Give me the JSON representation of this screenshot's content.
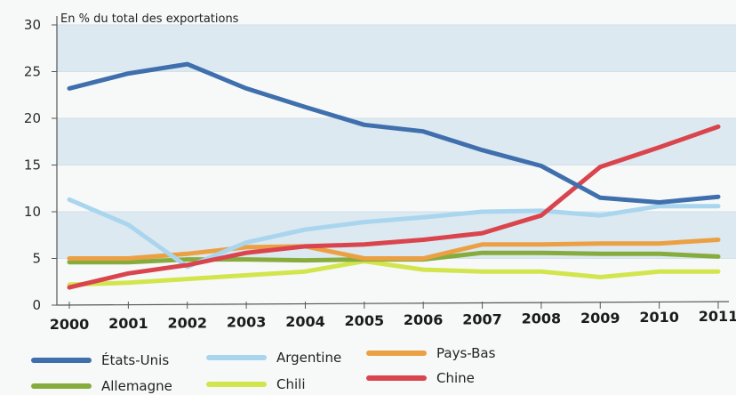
{
  "chart_data": {
    "type": "line",
    "title": "",
    "ylabel": "En % du total des exportations",
    "xlabel": "",
    "x": [
      "2000",
      "2001",
      "2002",
      "2003",
      "2004",
      "2005",
      "2006",
      "2007",
      "2008",
      "2009",
      "2010",
      "2011"
    ],
    "ylim": [
      0,
      30
    ],
    "yticks": [
      0,
      5,
      10,
      15,
      20,
      25,
      30
    ],
    "grid": "horizontal bands",
    "legend_position": "bottom",
    "series": [
      {
        "name": "États-Unis",
        "color": "#3f6fad",
        "values": [
          23.2,
          24.8,
          25.8,
          23.2,
          21.2,
          19.3,
          18.6,
          16.6,
          14.9,
          11.5,
          11.0,
          11.6
        ]
      },
      {
        "name": "Argentine",
        "color": "#a9d6ee",
        "values": [
          11.3,
          8.6,
          4.1,
          6.7,
          8.1,
          8.9,
          9.4,
          10.0,
          10.1,
          9.6,
          10.6,
          10.6
        ]
      },
      {
        "name": "Pays-Bas",
        "color": "#eba043",
        "values": [
          5.0,
          5.0,
          5.5,
          6.2,
          6.3,
          5.0,
          5.0,
          6.5,
          6.5,
          6.6,
          6.6,
          7.0
        ]
      },
      {
        "name": "Allemagne",
        "color": "#86ac3e",
        "values": [
          4.6,
          4.6,
          4.9,
          4.9,
          4.8,
          4.9,
          4.9,
          5.6,
          5.6,
          5.5,
          5.5,
          5.2
        ]
      },
      {
        "name": "Chili",
        "color": "#d3e54d",
        "values": [
          2.2,
          2.4,
          2.8,
          3.2,
          3.6,
          4.7,
          3.8,
          3.6,
          3.6,
          3.0,
          3.6,
          3.6
        ]
      },
      {
        "name": "Chine",
        "color": "#d9444d",
        "values": [
          1.9,
          3.4,
          4.3,
          5.6,
          6.3,
          6.5,
          7.0,
          7.7,
          9.6,
          14.8,
          16.9,
          19.1
        ]
      }
    ]
  }
}
